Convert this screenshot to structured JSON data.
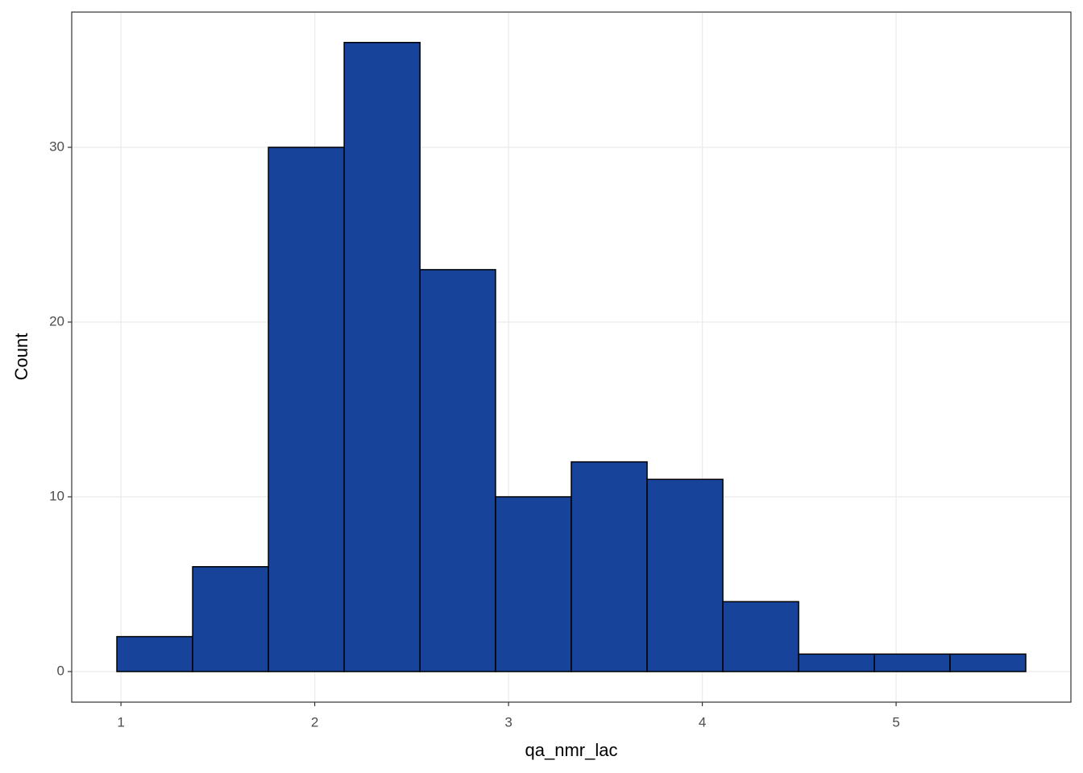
{
  "chart_data": {
    "type": "histogram",
    "x_label": "qa_nmr_lac",
    "y_label": "Count",
    "bins": [
      0.979,
      1.37,
      1.761,
      2.152,
      2.543,
      2.933,
      3.324,
      3.715,
      4.106,
      4.497,
      4.888,
      5.278,
      5.669
    ],
    "values": [
      2,
      6,
      30,
      36,
      23,
      10,
      12,
      11,
      4,
      1,
      1,
      1
    ],
    "color": "#17449a",
    "xlim": [
      0.746,
      5.902
    ],
    "xticks": [
      1,
      2,
      3,
      4,
      5
    ],
    "ylim": [
      -1.75,
      37.74
    ],
    "yticks": [
      0,
      10,
      20,
      30
    ],
    "grid": true
  }
}
